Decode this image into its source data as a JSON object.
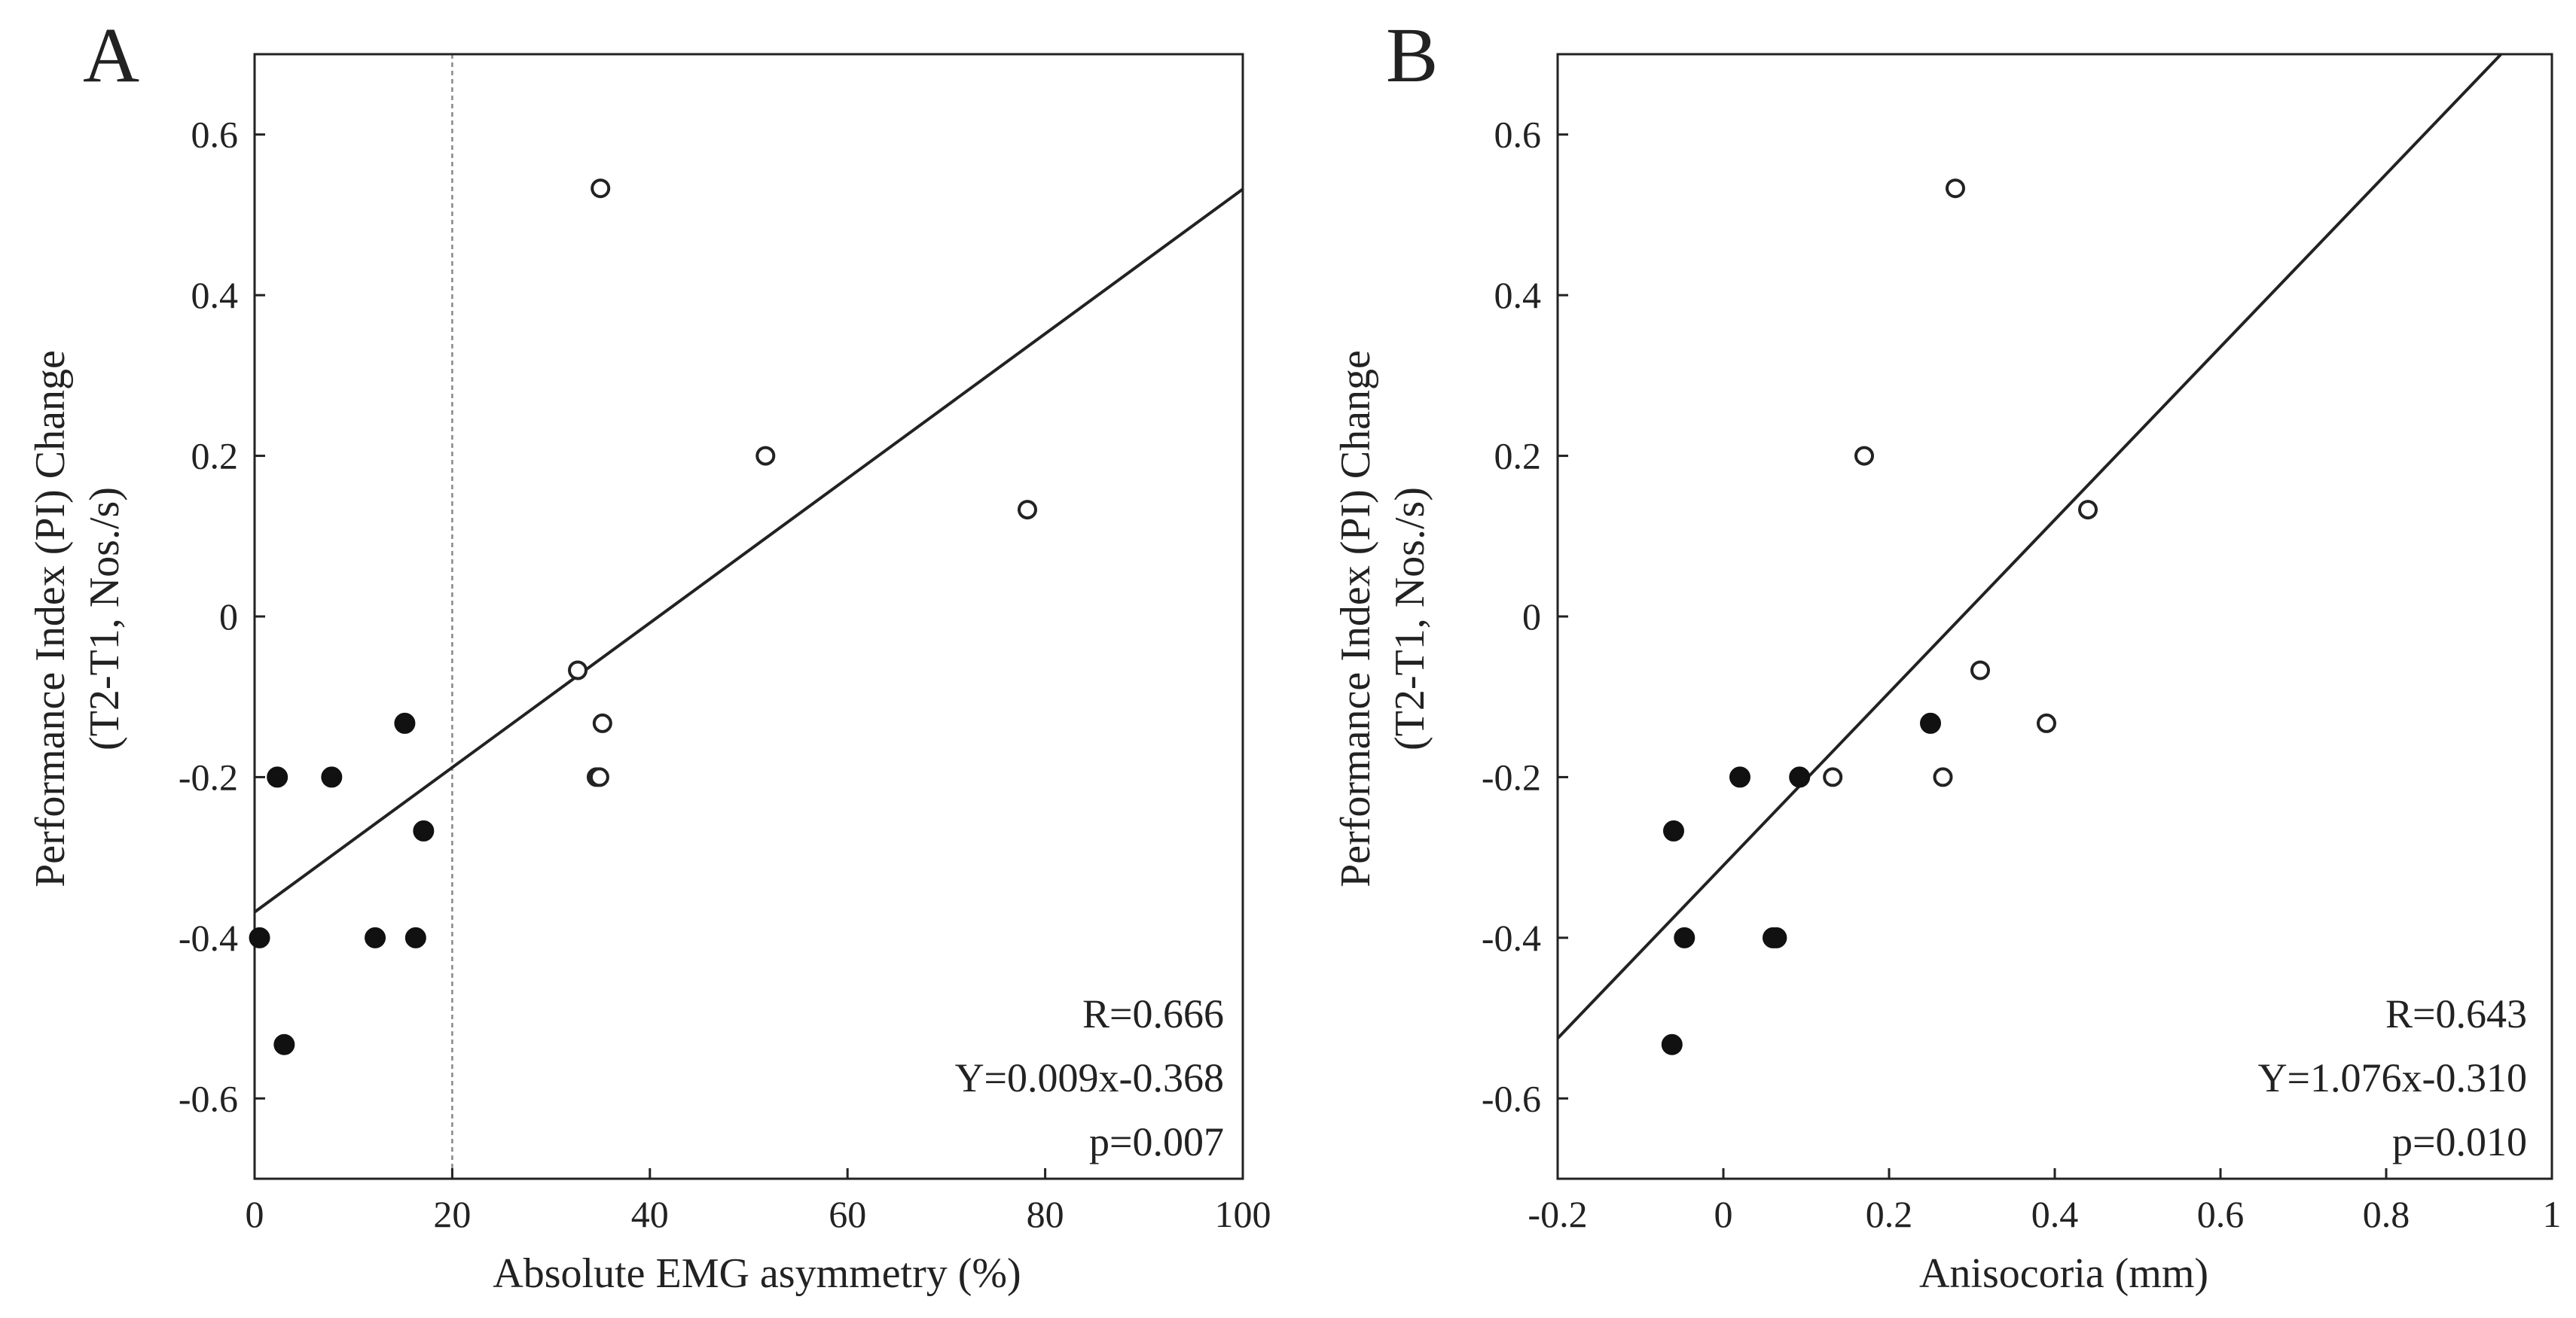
{
  "colors": {
    "ink": "#222222",
    "filled_point": "#111111",
    "reference_line": "#888888"
  },
  "chart_data": [
    {
      "type": "scatter",
      "panel_label": "A",
      "xlabel": "Absolute EMG asymmetry (%)",
      "ylabel_line1": "Performance Index (PI) Change",
      "ylabel_line2": "(T2-T1, Nos./s)",
      "xlim": [
        0,
        100
      ],
      "ylim": [
        -0.7,
        0.7
      ],
      "xticks": [
        0,
        20,
        40,
        60,
        80,
        100
      ],
      "xtick_labels": [
        "0",
        "20",
        "40",
        "60",
        "80",
        "100"
      ],
      "yticks": [
        -0.6,
        -0.4,
        -0.2,
        0,
        0.2,
        0.4,
        0.6
      ],
      "ytick_labels": [
        "-0.6",
        "-0.4",
        "-0.2",
        "0",
        "0.2",
        "0.4",
        "0.6"
      ],
      "grid": false,
      "reference_line_x": 20,
      "series": [
        {
          "name": "filled",
          "marker": "filled-circle",
          "points": [
            [
              0.5,
              -0.4
            ],
            [
              2.3,
              -0.2
            ],
            [
              3,
              -0.533
            ],
            [
              7.8,
              -0.2
            ],
            [
              12.2,
              -0.4
            ],
            [
              15.2,
              -0.133
            ],
            [
              16.3,
              -0.4
            ],
            [
              17.1,
              -0.267
            ]
          ]
        },
        {
          "name": "open",
          "marker": "open-circle",
          "points": [
            [
              32.7,
              -0.067
            ],
            [
              34.6,
              -0.2
            ],
            [
              34.9,
              -0.2
            ],
            [
              35,
              0.533
            ],
            [
              35.2,
              -0.133
            ],
            [
              51.7,
              0.2
            ],
            [
              78.2,
              0.133
            ]
          ]
        }
      ],
      "regression": {
        "slope": 0.009,
        "intercept": -0.368
      },
      "stats": {
        "r_text": "R=0.666",
        "equation_text": "Y=0.009x-0.368",
        "p_text": "p=0.007"
      }
    },
    {
      "type": "scatter",
      "panel_label": "B",
      "xlabel": "Anisocoria (mm)",
      "ylabel_line1": "Performance Index (PI) Change",
      "ylabel_line2": "(T2-T1, Nos./s)",
      "xlim": [
        -0.2,
        1
      ],
      "ylim": [
        -0.7,
        0.7
      ],
      "xticks": [
        -0.2,
        0,
        0.2,
        0.4,
        0.6,
        0.8,
        1
      ],
      "xtick_labels": [
        "-0.2",
        "0",
        "0.2",
        "0.4",
        "0.6",
        "0.8",
        "1"
      ],
      "yticks": [
        -0.6,
        -0.4,
        -0.2,
        0,
        0.2,
        0.4,
        0.6
      ],
      "ytick_labels": [
        "-0.6",
        "-0.4",
        "-0.2",
        "0",
        "0.2",
        "0.4",
        "0.6"
      ],
      "grid": false,
      "series": [
        {
          "name": "filled",
          "marker": "filled-circle",
          "points": [
            [
              -0.062,
              -0.533
            ],
            [
              -0.06,
              -0.267
            ],
            [
              -0.047,
              -0.4
            ],
            [
              0.02,
              -0.2
            ],
            [
              0.06,
              -0.4
            ],
            [
              0.064,
              -0.4
            ],
            [
              0.092,
              -0.2
            ],
            [
              0.25,
              -0.133
            ]
          ]
        },
        {
          "name": "open",
          "marker": "open-circle",
          "points": [
            [
              0.132,
              -0.2
            ],
            [
              0.17,
              0.2
            ],
            [
              0.265,
              -0.2
            ],
            [
              0.28,
              0.533
            ],
            [
              0.31,
              -0.067
            ],
            [
              0.39,
              -0.133
            ],
            [
              0.44,
              0.133
            ]
          ]
        }
      ],
      "regression": {
        "slope": 1.076,
        "intercept": -0.31
      },
      "stats": {
        "r_text": "R=0.643",
        "equation_text": "Y=1.076x-0.310",
        "p_text": "p=0.010"
      }
    }
  ]
}
